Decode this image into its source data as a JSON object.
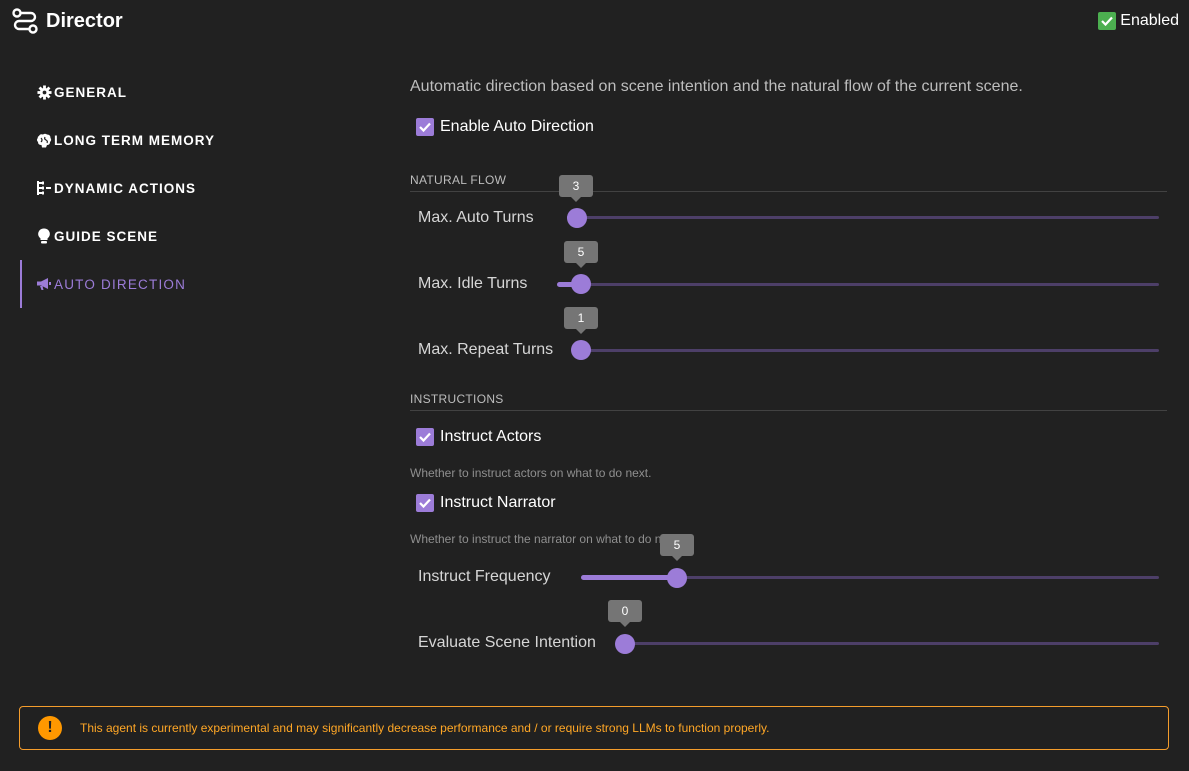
{
  "header": {
    "title": "Director",
    "enabled_label": "Enabled",
    "enabled": true,
    "accent_color": "#4caf50"
  },
  "sidebar": {
    "items": [
      {
        "label": "GENERAL",
        "icon": "gear-icon"
      },
      {
        "label": "LONG TERM MEMORY",
        "icon": "brain-icon"
      },
      {
        "label": "DYNAMIC ACTIONS",
        "icon": "flow-icon"
      },
      {
        "label": "GUIDE SCENE",
        "icon": "lightbulb-icon"
      },
      {
        "label": "AUTO DIRECTION",
        "icon": "megaphone-icon",
        "active": true
      }
    ],
    "active_color": "#9c7cd8"
  },
  "main": {
    "description": "Automatic direction based on scene intention and the natural flow of the current scene.",
    "enable_auto_direction": {
      "label": "Enable Auto Direction",
      "checked": true
    },
    "natural_flow": {
      "heading": "NATURAL FLOW",
      "sliders": [
        {
          "label": "Max. Auto Turns",
          "value": "3"
        },
        {
          "label": "Max. Idle Turns",
          "value": "5"
        },
        {
          "label": "Max. Repeat Turns",
          "value": "1"
        }
      ]
    },
    "instructions": {
      "heading": "INSTRUCTIONS",
      "instruct_actors": {
        "label": "Instruct Actors",
        "checked": true,
        "hint": "Whether to instruct actors on what to do next."
      },
      "instruct_narrator": {
        "label": "Instruct Narrator",
        "checked": true,
        "hint": "Whether to instruct the narrator on what to do next."
      },
      "sliders": [
        {
          "label": "Instruct Frequency",
          "value": "5"
        },
        {
          "label": "Evaluate Scene Intention",
          "value": "0"
        }
      ]
    }
  },
  "warning": {
    "icon": "exclamation-icon",
    "text": "This agent is currently experimental and may significantly decrease performance and / or require strong LLMs to function properly.",
    "color": "#ff9800"
  }
}
